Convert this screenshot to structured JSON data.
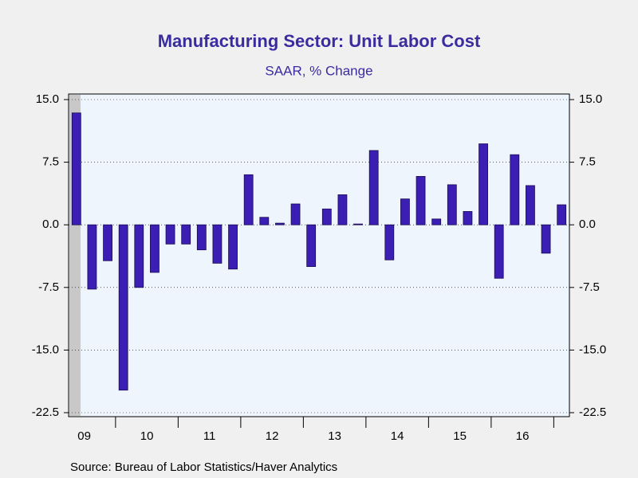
{
  "chart_data": {
    "type": "bar",
    "title": "Manufacturing Sector: Unit Labor Cost",
    "subtitle": "SAAR, % Change",
    "source": "Source:  Bureau of Labor Statistics/Haver Analytics",
    "categories": [
      null,
      "09",
      null,
      null,
      null,
      "10",
      null,
      null,
      null,
      "11",
      null,
      null,
      null,
      "12",
      null,
      null,
      null,
      "13",
      null,
      null,
      null,
      "14",
      null,
      null,
      null,
      "15",
      null,
      null,
      null,
      "16",
      null,
      null
    ],
    "values": [
      13.4,
      -7.7,
      -4.3,
      -19.8,
      -7.5,
      -5.7,
      -2.3,
      -2.3,
      -3.0,
      -4.6,
      -5.3,
      6.0,
      0.9,
      0.2,
      2.5,
      -5.0,
      1.9,
      3.6,
      0.1,
      8.9,
      -4.2,
      3.1,
      5.8,
      0.7,
      4.8,
      1.6,
      9.7,
      -6.4,
      8.4,
      4.7,
      -3.4,
      2.4
    ],
    "color": "#3b1fb4",
    "ylim": [
      -22.5,
      15
    ],
    "yticks": [
      {
        "value": -22.5,
        "label": "-22.5"
      },
      {
        "value": -15,
        "label": "-15.0"
      },
      -7.5,
      {
        "value": 0,
        "label": "0.0"
      },
      7.5,
      {
        "value": 15,
        "label": "15.0"
      }
    ]
  }
}
